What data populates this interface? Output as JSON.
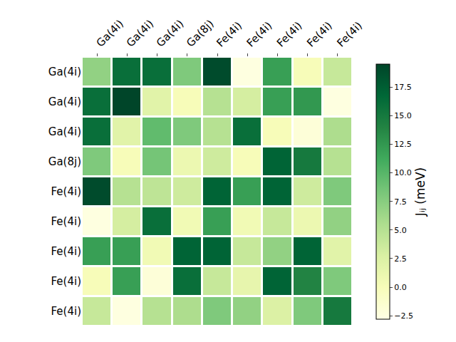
{
  "chart_data": {
    "type": "heatmap",
    "x_categories": [
      "Ga(4i)",
      "Ga(4i)",
      "Ga(4i)",
      "Ga(8j)",
      "Fe(4i)",
      "Fe(4i)",
      "Fe(4i)",
      "Fe(4i)",
      "Fe(4i)"
    ],
    "y_categories": [
      "Ga(4i)",
      "Ga(4i)",
      "Ga(4i)",
      "Ga(8j)",
      "Fe(4i)",
      "Fe(4i)",
      "Fe(4i)",
      "Fe(4i)",
      "Fe(4i)"
    ],
    "z": [
      [
        7,
        16,
        16,
        8,
        19,
        -2.5,
        12,
        0,
        4
      ],
      [
        16,
        19.5,
        2,
        0,
        5,
        3,
        12,
        12.5,
        -2.5
      ],
      [
        16,
        2,
        9.5,
        8,
        5,
        16,
        0,
        -2,
        5.5
      ],
      [
        8,
        0,
        8.5,
        1,
        3.5,
        0,
        17,
        15,
        5
      ],
      [
        19,
        5,
        4.5,
        3.5,
        17,
        12,
        17,
        3.5,
        8
      ],
      [
        -2.5,
        3,
        16,
        0.5,
        12,
        0.5,
        4,
        1,
        7
      ],
      [
        12,
        12,
        0.5,
        17,
        17,
        4,
        7,
        17,
        2
      ],
      [
        0,
        12,
        -2,
        16,
        4,
        1.5,
        17,
        14,
        8
      ],
      [
        4,
        -2.5,
        5,
        5.5,
        8,
        7,
        2.5,
        8,
        15
      ]
    ],
    "colorbar_label": "Jᵢⱼ (meV)",
    "colorbar_range": [
      -2.8,
      19.5
    ],
    "colorbar_ticks": [
      {
        "value": -2.5,
        "label": "−2.5"
      },
      {
        "value": 0,
        "label": "0.0"
      },
      {
        "value": 2.5,
        "label": "2.5"
      },
      {
        "value": 5,
        "label": "5.0"
      },
      {
        "value": 7.5,
        "label": "7.5"
      },
      {
        "value": 10,
        "label": "10.0"
      },
      {
        "value": 12.5,
        "label": "12.5"
      },
      {
        "value": 15,
        "label": "15.0"
      },
      {
        "value": 17.5,
        "label": "17.5"
      }
    ]
  }
}
